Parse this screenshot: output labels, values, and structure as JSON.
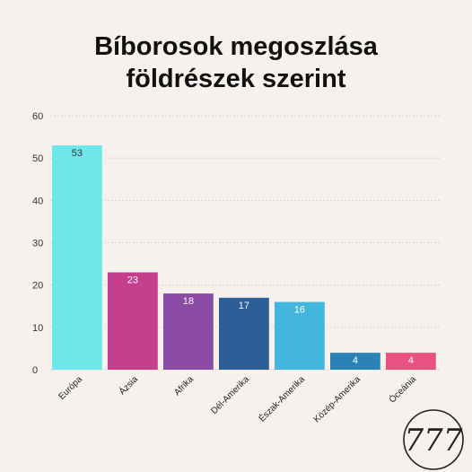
{
  "chart_data": {
    "type": "bar",
    "title_lines": [
      "Bíborosok megoszlása",
      "földrészek szerint"
    ],
    "categories": [
      "Európa",
      "Ázsia",
      "Afrika",
      "Dél-Amerika",
      "Észak-Amerika",
      "Közép-Amerika",
      "Óceánia"
    ],
    "values": [
      53,
      23,
      18,
      17,
      16,
      4,
      4
    ],
    "colors": [
      "#6de7ea",
      "#c63f8d",
      "#8b4aa6",
      "#2c5f98",
      "#42b6dd",
      "#2b82b7",
      "#e85181"
    ],
    "ylim": [
      0,
      60
    ],
    "yticks": [
      0,
      10,
      20,
      30,
      40,
      50,
      60
    ],
    "grid": true,
    "legend": "none"
  },
  "logo": {
    "text": "777"
  }
}
